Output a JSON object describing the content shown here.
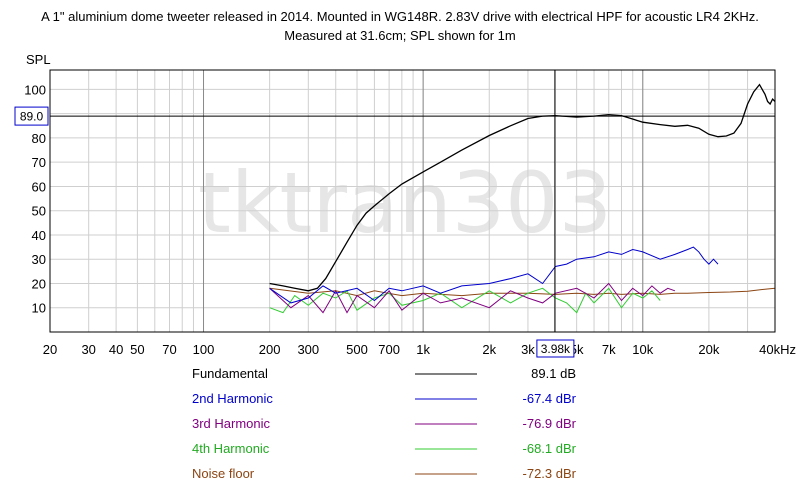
{
  "chart_data": {
    "type": "line",
    "title_lines": [
      "A 1\" aluminium dome tweeter released in 2014. Mounted in WG148R. 2.83V drive with electrical HPF for acoustic LR4 2KHz.",
      "Measured at 31.6cm; SPL shown for 1m"
    ],
    "ylabel": "SPL",
    "xlabel": "",
    "x_scale": "log",
    "xlim": [
      20,
      40000
    ],
    "ylim": [
      0,
      108
    ],
    "grid": true,
    "watermark": "tktran303",
    "x_ticks": [
      {
        "value": 20,
        "label": "20"
      },
      {
        "value": 30,
        "label": "30"
      },
      {
        "value": 40,
        "label": "40"
      },
      {
        "value": 50,
        "label": "50"
      },
      {
        "value": 70,
        "label": "70"
      },
      {
        "value": 100,
        "label": "100"
      },
      {
        "value": 200,
        "label": "200"
      },
      {
        "value": 300,
        "label": "300"
      },
      {
        "value": 500,
        "label": "500"
      },
      {
        "value": 700,
        "label": "700"
      },
      {
        "value": 1000,
        "label": "1k"
      },
      {
        "value": 2000,
        "label": "2k"
      },
      {
        "value": 3000,
        "label": "3k"
      },
      {
        "value": 5000,
        "label": "5k"
      },
      {
        "value": 7000,
        "label": "7k"
      },
      {
        "value": 10000,
        "label": "10k"
      },
      {
        "value": 20000,
        "label": "20k"
      },
      {
        "value": 40000,
        "label": "40kHz"
      }
    ],
    "y_ticks": [
      {
        "value": 10,
        "label": "10"
      },
      {
        "value": 20,
        "label": "20"
      },
      {
        "value": 30,
        "label": "30"
      },
      {
        "value": 40,
        "label": "40"
      },
      {
        "value": 50,
        "label": "50"
      },
      {
        "value": 60,
        "label": "60"
      },
      {
        "value": 70,
        "label": "70"
      },
      {
        "value": 80,
        "label": "80"
      },
      {
        "value": 90,
        "label": "90"
      },
      {
        "value": 100,
        "label": "100"
      }
    ],
    "cursor": {
      "x": 3980,
      "x_label": "3.98k",
      "y": 89.0,
      "y_label": "89.0"
    },
    "series": [
      {
        "name": "Fundamental",
        "color": "#000000",
        "value_label": "89.1 dB",
        "points": [
          [
            200,
            20
          ],
          [
            230,
            19
          ],
          [
            260,
            18
          ],
          [
            300,
            17
          ],
          [
            330,
            18
          ],
          [
            360,
            22
          ],
          [
            400,
            29
          ],
          [
            450,
            37
          ],
          [
            500,
            44
          ],
          [
            550,
            49
          ],
          [
            600,
            52
          ],
          [
            700,
            57
          ],
          [
            800,
            61
          ],
          [
            1000,
            66
          ],
          [
            1200,
            70
          ],
          [
            1500,
            75
          ],
          [
            2000,
            81
          ],
          [
            2500,
            85
          ],
          [
            3000,
            88
          ],
          [
            3500,
            89
          ],
          [
            4000,
            89.2
          ],
          [
            5000,
            88.6
          ],
          [
            6000,
            89
          ],
          [
            7000,
            89.6
          ],
          [
            8000,
            89.2
          ],
          [
            10000,
            86.5
          ],
          [
            12000,
            85.5
          ],
          [
            14000,
            84.8
          ],
          [
            16000,
            85.2
          ],
          [
            18000,
            84
          ],
          [
            20000,
            81.5
          ],
          [
            22000,
            80.5
          ],
          [
            24000,
            80.8
          ],
          [
            26000,
            82
          ],
          [
            28000,
            86
          ],
          [
            30000,
            94
          ],
          [
            32000,
            99
          ],
          [
            34000,
            102
          ],
          [
            36000,
            98
          ],
          [
            37000,
            95
          ],
          [
            38000,
            94
          ],
          [
            39000,
            96
          ],
          [
            40000,
            95
          ]
        ]
      },
      {
        "name": "2nd Harmonic",
        "color": "#0000cc",
        "value_label": "-67.4 dBr",
        "points": [
          [
            200,
            18
          ],
          [
            250,
            12
          ],
          [
            300,
            14
          ],
          [
            350,
            19
          ],
          [
            400,
            16
          ],
          [
            500,
            18
          ],
          [
            600,
            13
          ],
          [
            700,
            18
          ],
          [
            800,
            17
          ],
          [
            1000,
            19
          ],
          [
            1200,
            16
          ],
          [
            1500,
            19
          ],
          [
            2000,
            20
          ],
          [
            2500,
            22
          ],
          [
            3000,
            24
          ],
          [
            3500,
            20
          ],
          [
            4000,
            27
          ],
          [
            4500,
            28
          ],
          [
            5000,
            30
          ],
          [
            6000,
            31
          ],
          [
            7000,
            33
          ],
          [
            8000,
            32
          ],
          [
            9000,
            34
          ],
          [
            10000,
            33
          ],
          [
            12000,
            30
          ],
          [
            14000,
            32
          ],
          [
            16000,
            34
          ],
          [
            17000,
            35
          ],
          [
            18000,
            33
          ],
          [
            19000,
            30
          ],
          [
            20000,
            28
          ],
          [
            21000,
            30
          ],
          [
            22000,
            28
          ]
        ]
      },
      {
        "name": "3rd Harmonic",
        "color": "#800080",
        "value_label": "-76.9 dBr",
        "points": [
          [
            200,
            18
          ],
          [
            250,
            10
          ],
          [
            300,
            15
          ],
          [
            350,
            8
          ],
          [
            400,
            17
          ],
          [
            450,
            8
          ],
          [
            500,
            15
          ],
          [
            600,
            10
          ],
          [
            700,
            17
          ],
          [
            800,
            9
          ],
          [
            1000,
            16
          ],
          [
            1200,
            12
          ],
          [
            1500,
            14
          ],
          [
            2000,
            10
          ],
          [
            2500,
            17
          ],
          [
            3000,
            14
          ],
          [
            3500,
            12
          ],
          [
            4000,
            16
          ],
          [
            5000,
            18
          ],
          [
            6000,
            14
          ],
          [
            7000,
            20
          ],
          [
            8000,
            13
          ],
          [
            9000,
            18
          ],
          [
            10000,
            15
          ],
          [
            11000,
            19
          ],
          [
            12000,
            16
          ],
          [
            13000,
            18
          ],
          [
            14000,
            17
          ]
        ]
      },
      {
        "name": "4th Harmonic",
        "color": "#33cc33",
        "value_label": "-68.1 dBr",
        "points": [
          [
            200,
            10
          ],
          [
            230,
            8
          ],
          [
            260,
            15
          ],
          [
            300,
            11
          ],
          [
            350,
            16
          ],
          [
            400,
            14
          ],
          [
            450,
            17
          ],
          [
            500,
            9
          ],
          [
            600,
            14
          ],
          [
            700,
            16
          ],
          [
            800,
            11
          ],
          [
            1000,
            13
          ],
          [
            1200,
            16
          ],
          [
            1500,
            10
          ],
          [
            2000,
            17
          ],
          [
            2500,
            12
          ],
          [
            3000,
            16
          ],
          [
            3500,
            18
          ],
          [
            4000,
            14
          ],
          [
            4500,
            12
          ],
          [
            5000,
            8
          ],
          [
            5500,
            16
          ],
          [
            6000,
            12
          ],
          [
            7000,
            18
          ],
          [
            8000,
            10
          ],
          [
            9000,
            16
          ],
          [
            10000,
            14
          ],
          [
            11000,
            17
          ],
          [
            12000,
            13
          ]
        ]
      },
      {
        "name": "Noise floor",
        "color": "#8b4513",
        "value_label": "-72.3 dBr",
        "points": [
          [
            200,
            18
          ],
          [
            300,
            16
          ],
          [
            400,
            17
          ],
          [
            500,
            15
          ],
          [
            600,
            17
          ],
          [
            800,
            15
          ],
          [
            1000,
            16
          ],
          [
            1500,
            15
          ],
          [
            2000,
            16
          ],
          [
            3000,
            16
          ],
          [
            4000,
            15.5
          ],
          [
            5000,
            16
          ],
          [
            6000,
            15.5
          ],
          [
            7000,
            16
          ],
          [
            8000,
            15.5
          ],
          [
            10000,
            16
          ],
          [
            12000,
            15.5
          ],
          [
            14000,
            16
          ],
          [
            16000,
            16
          ],
          [
            20000,
            16.3
          ],
          [
            25000,
            16.5
          ],
          [
            30000,
            16.8
          ],
          [
            35000,
            17.5
          ],
          [
            40000,
            18
          ]
        ]
      }
    ]
  }
}
